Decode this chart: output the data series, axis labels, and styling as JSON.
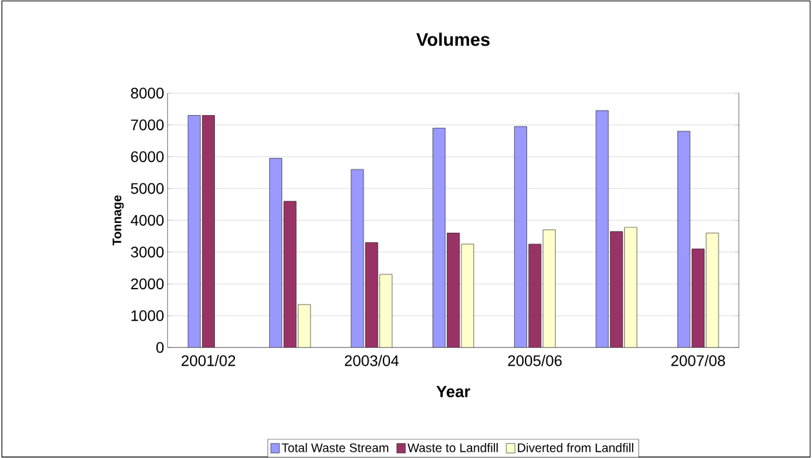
{
  "chart_data": {
    "type": "bar",
    "title": "Volumes",
    "xlabel": "Year",
    "ylabel": "Tonnage",
    "categories": [
      "2001/02",
      null,
      "2003/04",
      null,
      "2005/06",
      null,
      "2007/08"
    ],
    "series": [
      {
        "name": "Total Waste Stream",
        "color": "#9999ff",
        "values": [
          7300,
          5950,
          5600,
          6900,
          6950,
          7450,
          6800
        ]
      },
      {
        "name": "Waste to Landfill",
        "color": "#993366",
        "values": [
          7300,
          4600,
          3300,
          3600,
          3250,
          3650,
          3100
        ]
      },
      {
        "name": "Diverted from Landfill",
        "color": "#ffffcc",
        "values": [
          null,
          1350,
          2300,
          3250,
          3700,
          3780,
          3600
        ]
      }
    ],
    "ylim": [
      0,
      8000
    ],
    "yticks": [
      0,
      1000,
      2000,
      3000,
      4000,
      5000,
      6000,
      7000,
      8000
    ],
    "grid": "y",
    "legend": "bottom"
  }
}
